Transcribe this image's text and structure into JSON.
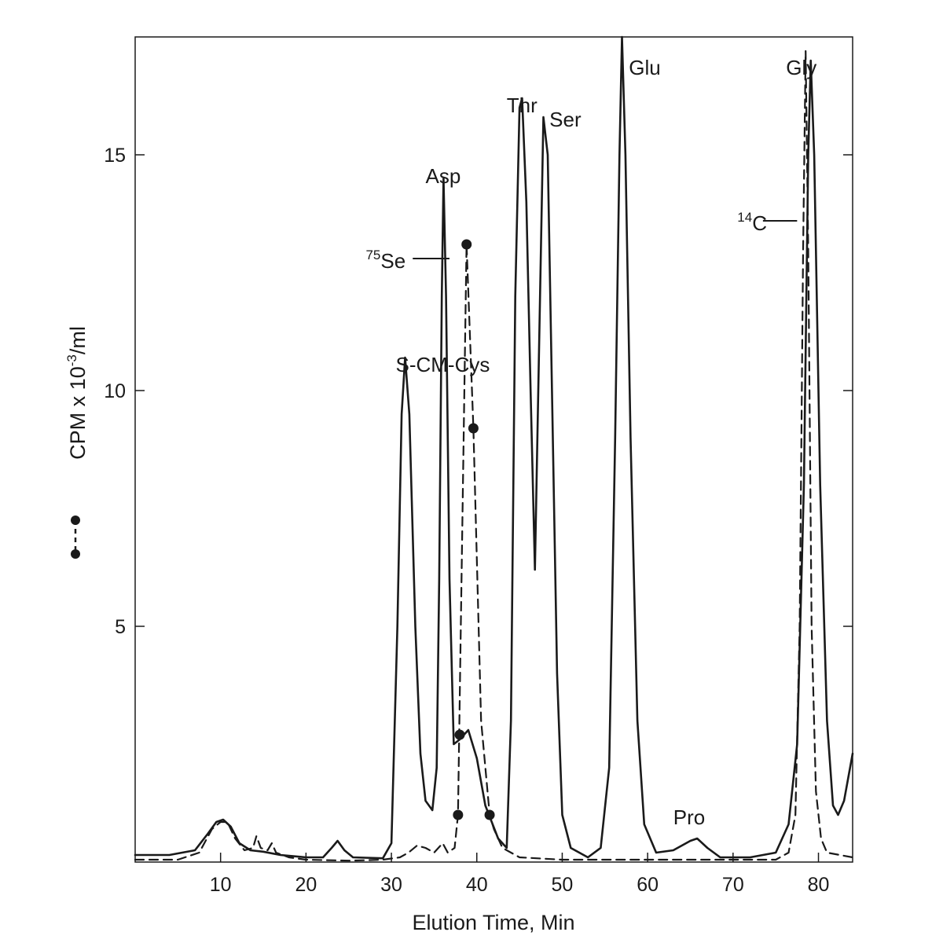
{
  "chart_data": {
    "type": "line",
    "xlabel": "Elution Time, Min",
    "ylabel": "CPM x 10",
    "ylabel_sup": "-3",
    "ylabel_unit": "/ml",
    "xlim": [
      0,
      84
    ],
    "ylim": [
      0,
      17.5
    ],
    "x_ticks": [
      10,
      20,
      30,
      40,
      50,
      60,
      70,
      80
    ],
    "y_ticks": [
      5,
      10,
      15
    ],
    "grid": false,
    "legend": {
      "placement": "left",
      "marker": "dashed line with filled circles"
    },
    "series": [
      {
        "style": "solid",
        "points": [
          [
            0,
            0.15
          ],
          [
            4,
            0.15
          ],
          [
            7,
            0.25
          ],
          [
            8.5,
            0.6
          ],
          [
            9.5,
            0.85
          ],
          [
            10.3,
            0.9
          ],
          [
            11.2,
            0.75
          ],
          [
            12.2,
            0.4
          ],
          [
            13.5,
            0.25
          ],
          [
            15,
            0.22
          ],
          [
            17,
            0.15
          ],
          [
            20,
            0.1
          ],
          [
            22,
            0.1
          ],
          [
            23,
            0.3
          ],
          [
            23.7,
            0.45
          ],
          [
            24.5,
            0.25
          ],
          [
            25.5,
            0.1
          ],
          [
            29,
            0.08
          ],
          [
            30,
            0.4
          ],
          [
            30.7,
            5
          ],
          [
            31.2,
            9.5
          ],
          [
            31.6,
            10.7
          ],
          [
            32.1,
            9.5
          ],
          [
            32.8,
            5
          ],
          [
            33.4,
            2.3
          ],
          [
            34,
            1.3
          ],
          [
            34.8,
            1.1
          ],
          [
            35.3,
            2
          ],
          [
            35.6,
            6
          ],
          [
            35.9,
            12
          ],
          [
            36.1,
            14.5
          ],
          [
            36.4,
            12
          ],
          [
            36.8,
            6
          ],
          [
            37.3,
            2.5
          ],
          [
            38,
            2.6
          ],
          [
            39,
            2.8
          ],
          [
            40,
            2.2
          ],
          [
            41,
            1.2
          ],
          [
            42.5,
            0.5
          ],
          [
            43.5,
            0.3
          ],
          [
            44,
            3
          ],
          [
            44.5,
            12
          ],
          [
            45,
            16
          ],
          [
            45.3,
            16.2
          ],
          [
            45.8,
            14
          ],
          [
            46.3,
            10
          ],
          [
            46.8,
            6.2
          ],
          [
            47.3,
            11
          ],
          [
            47.8,
            15.8
          ],
          [
            48.3,
            15
          ],
          [
            48.8,
            10
          ],
          [
            49.4,
            4
          ],
          [
            50,
            1
          ],
          [
            51,
            0.3
          ],
          [
            53,
            0.1
          ],
          [
            54.5,
            0.3
          ],
          [
            55.5,
            2
          ],
          [
            56.2,
            9
          ],
          [
            56.7,
            15
          ],
          [
            57,
            17.5
          ],
          [
            57.4,
            15
          ],
          [
            58,
            9
          ],
          [
            58.8,
            3
          ],
          [
            59.6,
            0.8
          ],
          [
            61,
            0.2
          ],
          [
            63,
            0.25
          ],
          [
            65,
            0.45
          ],
          [
            65.8,
            0.5
          ],
          [
            67,
            0.3
          ],
          [
            68.5,
            0.1
          ],
          [
            72,
            0.1
          ],
          [
            75,
            0.2
          ],
          [
            76.5,
            0.8
          ],
          [
            77.5,
            2.5
          ],
          [
            78.3,
            8
          ],
          [
            78.8,
            15
          ],
          [
            79.1,
            17
          ],
          [
            79.5,
            15
          ],
          [
            80.2,
            8
          ],
          [
            81,
            3
          ],
          [
            81.7,
            1.2
          ],
          [
            82.3,
            1
          ],
          [
            83,
            1.3
          ],
          [
            84,
            2.3
          ]
        ]
      },
      {
        "style": "dashed",
        "points": [
          [
            0,
            0.05
          ],
          [
            5,
            0.05
          ],
          [
            7.5,
            0.2
          ],
          [
            9,
            0.7
          ],
          [
            10,
            0.85
          ],
          [
            10.8,
            0.85
          ],
          [
            11.7,
            0.5
          ],
          [
            12.8,
            0.25
          ],
          [
            13.8,
            0.3
          ],
          [
            14.2,
            0.55
          ],
          [
            14.7,
            0.3
          ],
          [
            15.5,
            0.25
          ],
          [
            16,
            0.4
          ],
          [
            16.5,
            0.2
          ],
          [
            18,
            0.1
          ],
          [
            20,
            0.05
          ],
          [
            25,
            0.03
          ],
          [
            29,
            0.05
          ],
          [
            31,
            0.1
          ],
          [
            32,
            0.2
          ],
          [
            33,
            0.35
          ],
          [
            34,
            0.3
          ],
          [
            35,
            0.2
          ],
          [
            36,
            0.4
          ],
          [
            36.6,
            0.2
          ],
          [
            37.4,
            0.3
          ],
          [
            37.8,
            1.0
          ],
          [
            38.8,
            13.1
          ],
          [
            39.6,
            9.2
          ],
          [
            40.5,
            3
          ],
          [
            41.5,
            1.0
          ],
          [
            42,
            0.7
          ],
          [
            43,
            0.3
          ],
          [
            45,
            0.1
          ],
          [
            50,
            0.05
          ],
          [
            60,
            0.05
          ],
          [
            70,
            0.05
          ],
          [
            75,
            0.05
          ],
          [
            76.5,
            0.2
          ],
          [
            77.3,
            1
          ],
          [
            77.8,
            5
          ],
          [
            78.2,
            13
          ],
          [
            78.5,
            17.2
          ],
          [
            78.8,
            13
          ],
          [
            79.2,
            5
          ],
          [
            79.7,
            1.5
          ],
          [
            80.3,
            0.5
          ],
          [
            81,
            0.2
          ],
          [
            84,
            0.1
          ]
        ],
        "markers": [
          [
            37.8,
            1.0
          ],
          [
            38,
            2.7
          ],
          [
            38.8,
            13.1
          ],
          [
            39.6,
            9.2
          ],
          [
            41.5,
            1.0
          ]
        ]
      }
    ],
    "annotations": [
      {
        "text": "S-CM-Cys",
        "x": 30.5,
        "y": 10.4
      },
      {
        "text": "Asp",
        "x": 34,
        "y": 14.4
      },
      {
        "text": "Thr",
        "x": 43.5,
        "y": 15.9
      },
      {
        "text": "Ser",
        "x": 48.5,
        "y": 15.6
      },
      {
        "text": "Glu",
        "x": 57.8,
        "y": 16.7
      },
      {
        "text": "Pro",
        "x": 63,
        "y": 0.8
      },
      {
        "text": "Gly",
        "x": 76.2,
        "y": 16.7
      },
      {
        "sup": "75",
        "text": "Se",
        "x": 27,
        "y": 12.6
      },
      {
        "sup": "14",
        "text": "C",
        "x": 70.5,
        "y": 13.4
      }
    ]
  }
}
